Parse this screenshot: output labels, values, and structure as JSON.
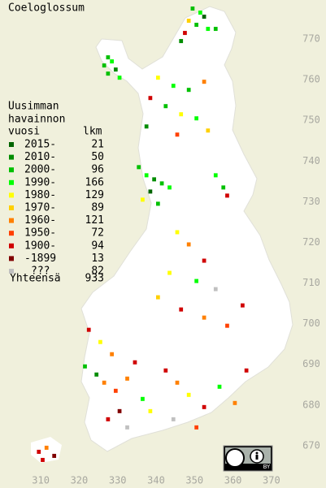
{
  "chart_data": {
    "type": "grid-map",
    "title": "Coeloglossum",
    "legend_header": [
      "Uusimman",
      "havainnon",
      "vuosi"
    ],
    "count_header": "lkm",
    "legend": [
      {
        "label": "2015-",
        "count": 21,
        "color": "#006400"
      },
      {
        "label": "2010-",
        "count": 50,
        "color": "#008c00"
      },
      {
        "label": "2000-",
        "count": 96,
        "color": "#00c000"
      },
      {
        "label": "1990-",
        "count": 166,
        "color": "#00ff00"
      },
      {
        "label": "1980-",
        "count": 129,
        "color": "#ffff00"
      },
      {
        "label": "1970-",
        "count": 89,
        "color": "#ffd000"
      },
      {
        "label": "1960-",
        "count": 121,
        "color": "#ff8000"
      },
      {
        "label": "1950-",
        "count": 72,
        "color": "#ff4000"
      },
      {
        "label": "1900-",
        "count": 94,
        "color": "#d00000"
      },
      {
        "label": "-1899",
        "count": 13,
        "color": "#800000"
      },
      {
        "label": "???",
        "count": 82,
        "color": "#c0c0c0"
      }
    ],
    "total_label": "Yhteensä",
    "total": 933,
    "license_badge": "BY",
    "xlim": [
      299.4,
      384.2
    ],
    "ylim": [
      659.6,
      779.6
    ],
    "xticks": [
      310,
      320,
      330,
      340,
      350,
      360,
      370
    ],
    "yticks": [
      670,
      680,
      690,
      700,
      710,
      720,
      730,
      740,
      750,
      760,
      770
    ],
    "points": [
      [
        349,
        777,
        2
      ],
      [
        351,
        776,
        3
      ],
      [
        352,
        775,
        0
      ],
      [
        348,
        774,
        5
      ],
      [
        350,
        773,
        2
      ],
      [
        353,
        772,
        3
      ],
      [
        347,
        771,
        8
      ],
      [
        355,
        772,
        2
      ],
      [
        346,
        769,
        1
      ],
      [
        327,
        765,
        2
      ],
      [
        328,
        764,
        3
      ],
      [
        326,
        763,
        2
      ],
      [
        329,
        762,
        1
      ],
      [
        330,
        760,
        3
      ],
      [
        327,
        761,
        2
      ],
      [
        340,
        760,
        4
      ],
      [
        344,
        758,
        3
      ],
      [
        348,
        757,
        2
      ],
      [
        352,
        759,
        6
      ],
      [
        338,
        755,
        8
      ],
      [
        342,
        753,
        2
      ],
      [
        346,
        751,
        4
      ],
      [
        350,
        750,
        3
      ],
      [
        337,
        748,
        1
      ],
      [
        345,
        746,
        7
      ],
      [
        353,
        747,
        5
      ],
      [
        335,
        738,
        2
      ],
      [
        337,
        736,
        3
      ],
      [
        339,
        735,
        1
      ],
      [
        341,
        734,
        2
      ],
      [
        338,
        732,
        0
      ],
      [
        343,
        733,
        3
      ],
      [
        336,
        730,
        4
      ],
      [
        340,
        729,
        2
      ],
      [
        355,
        736,
        3
      ],
      [
        357,
        733,
        2
      ],
      [
        358,
        731,
        8
      ],
      [
        345,
        722,
        4
      ],
      [
        348,
        719,
        6
      ],
      [
        352,
        715,
        8
      ],
      [
        343,
        712,
        4
      ],
      [
        350,
        710,
        3
      ],
      [
        355,
        708,
        10
      ],
      [
        340,
        706,
        5
      ],
      [
        346,
        703,
        8
      ],
      [
        352,
        701,
        6
      ],
      [
        358,
        699,
        7
      ],
      [
        362,
        704,
        8
      ],
      [
        322,
        698,
        8
      ],
      [
        325,
        695,
        4
      ],
      [
        328,
        692,
        6
      ],
      [
        321,
        689,
        2
      ],
      [
        324,
        687,
        1
      ],
      [
        326,
        685,
        6
      ],
      [
        329,
        683,
        7
      ],
      [
        332,
        686,
        6
      ],
      [
        334,
        690,
        8
      ],
      [
        336,
        681,
        3
      ],
      [
        330,
        678,
        9
      ],
      [
        327,
        676,
        8
      ],
      [
        332,
        674,
        10
      ],
      [
        338,
        678,
        4
      ],
      [
        342,
        688,
        8
      ],
      [
        345,
        685,
        6
      ],
      [
        348,
        682,
        4
      ],
      [
        352,
        679,
        8
      ],
      [
        356,
        684,
        3
      ],
      [
        360,
        680,
        6
      ],
      [
        344,
        676,
        10
      ],
      [
        350,
        674,
        7
      ],
      [
        363,
        688,
        8
      ],
      [
        309,
        668,
        8
      ],
      [
        311,
        669,
        6
      ],
      [
        313,
        667,
        9
      ],
      [
        310,
        666,
        8
      ]
    ]
  }
}
